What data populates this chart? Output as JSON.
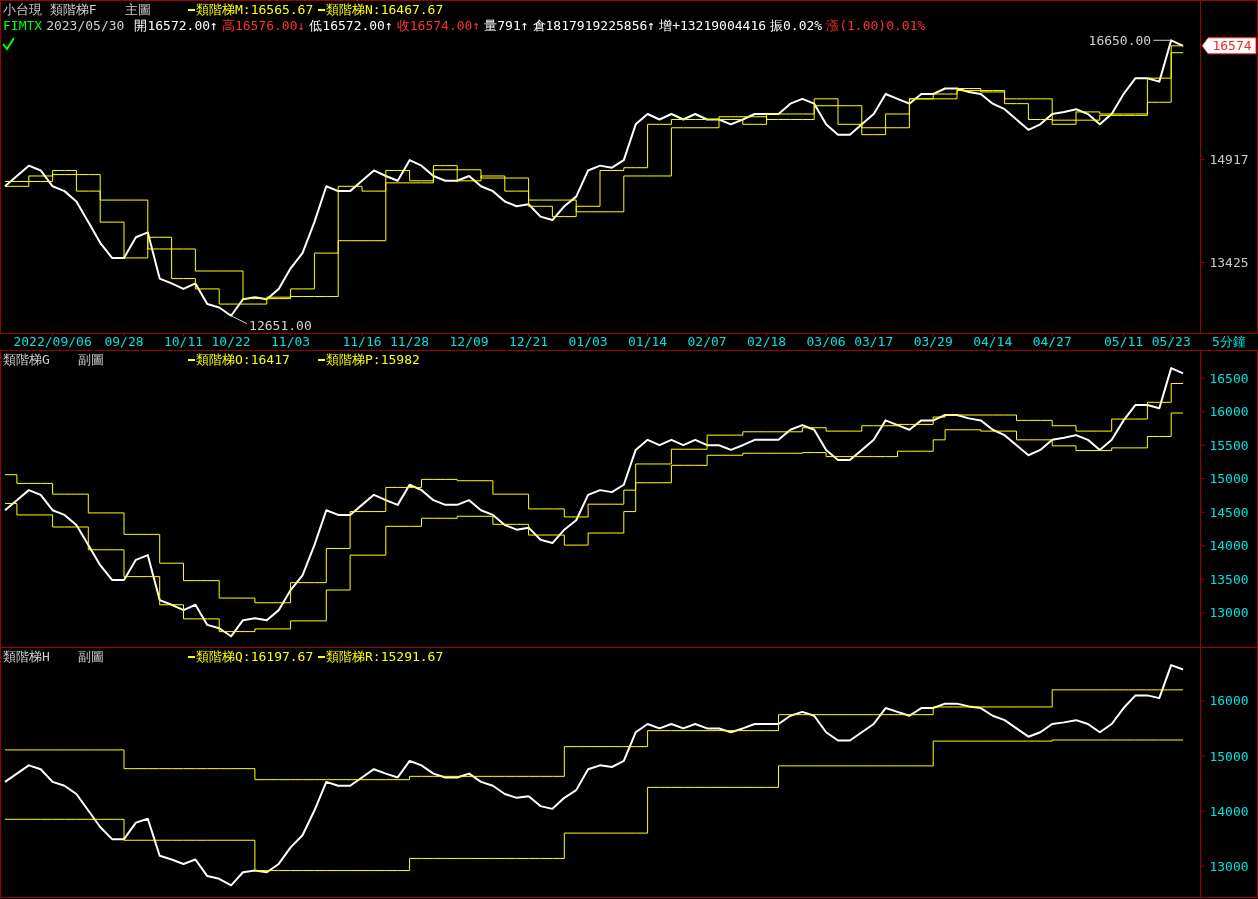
{
  "chart_data": [
    {
      "type": "line",
      "title": "小台現 類階梯F",
      "subtitle": "主圖",
      "xlabel": "5分鐘",
      "legend": "top left",
      "annotations": [
        "FIMTX",
        "2023/05/30",
        "開16572.00↑",
        "高16576.00↓",
        "低16572.00↑",
        "收16574.00↑",
        "量791↑",
        "倉1817919225856↑",
        "增+13219004416",
        "振0.02%",
        "漲(1.00)0.01%",
        "16650.00",
        "16574",
        {
          "text": "12651.00",
          "x": "10/22",
          "y": 12651
        }
      ],
      "categories": [
        null,
        null,
        null,
        null,
        "2022/09/06",
        null,
        null,
        null,
        null,
        null,
        "09/28",
        null,
        null,
        null,
        null,
        "10/11",
        null,
        null,
        null,
        "10/22",
        null,
        null,
        null,
        null,
        "11/03",
        null,
        null,
        null,
        null,
        null,
        "11/16",
        null,
        null,
        null,
        "11/28",
        null,
        null,
        null,
        null,
        "12/09",
        null,
        null,
        null,
        null,
        "12/21",
        null,
        null,
        null,
        null,
        "01/03",
        null,
        null,
        null,
        null,
        "01/14",
        null,
        null,
        null,
        null,
        "02/07",
        null,
        null,
        null,
        null,
        "02/18",
        null,
        null,
        null,
        null,
        "03/06",
        null,
        null,
        null,
        "03/17",
        null,
        null,
        null,
        null,
        "03/29",
        null,
        null,
        null,
        null,
        "04/14",
        null,
        null,
        null,
        null,
        "04/27",
        null,
        null,
        null,
        null,
        null,
        "05/11",
        null,
        null,
        null,
        "05/23",
        null
      ],
      "ylim": [
        12400,
        17235
      ],
      "yticks": [
        13425,
        14917
      ],
      "series": [
        {
          "type": "line",
          "color": "#ffffff",
          "values": [
            14530,
            14680,
            14830,
            14760,
            14530,
            14460,
            14310,
            14010,
            13710,
            13490,
            13490,
            13790,
            13860,
            13190,
            13120,
            13040,
            13120,
            12820,
            12770,
            12650,
            12890,
            12920,
            12890,
            13040,
            13340,
            13560,
            14010,
            14530,
            14460,
            14460,
            14610,
            14760,
            14680,
            14610,
            14910,
            14830,
            14680,
            14610,
            14610,
            14680,
            14530,
            14460,
            14310,
            14240,
            14270,
            14090,
            14040,
            14240,
            14380,
            14760,
            14830,
            14800,
            14910,
            15430,
            15580,
            15500,
            15580,
            15500,
            15580,
            15500,
            15500,
            15430,
            15500,
            15580,
            15580,
            15580,
            15730,
            15800,
            15730,
            15430,
            15280,
            15280,
            15430,
            15580,
            15870,
            15800,
            15730,
            15870,
            15870,
            15950,
            15950,
            15900,
            15870,
            15730,
            15650,
            15500,
            15350,
            15430,
            15580,
            15610,
            15650,
            15580,
            15430,
            15580,
            15870,
            16100,
            16100,
            16050,
            16650,
            16570
          ]
        },
        {
          "type": "step",
          "name": "類階梯M:16565.67",
          "color": "#ffff00",
          "values": [
            14530,
            14530,
            14680,
            14680,
            14760,
            14760,
            14460,
            14460,
            14010,
            14010,
            13490,
            13490,
            13790,
            13790,
            13190,
            13190,
            13040,
            13040,
            12820,
            12820,
            12820,
            12820,
            12920,
            12920,
            13040,
            13040,
            13560,
            13560,
            14530,
            14530,
            14460,
            14460,
            14760,
            14760,
            14610,
            14610,
            14830,
            14830,
            14610,
            14610,
            14680,
            14680,
            14460,
            14460,
            14240,
            14240,
            14090,
            14090,
            14240,
            14240,
            14760,
            14760,
            14800,
            14800,
            15430,
            15430,
            15500,
            15500,
            15500,
            15500,
            15500,
            15500,
            15430,
            15430,
            15580,
            15580,
            15580,
            15580,
            15800,
            15800,
            15430,
            15430,
            15280,
            15280,
            15580,
            15580,
            15800,
            15800,
            15870,
            15870,
            15950,
            15950,
            15900,
            15900,
            15730,
            15730,
            15500,
            15500,
            15430,
            15430,
            15610,
            15610,
            15580,
            15580,
            15580,
            15580,
            16100,
            16100,
            16570,
            16570
          ]
        },
        {
          "type": "step",
          "name": "類階梯N:16467.67",
          "color": "#ffff00",
          "values": [
            14600,
            14600,
            14600,
            14600,
            14700,
            14700,
            14700,
            14700,
            14330,
            14330,
            14330,
            14330,
            13620,
            13620,
            13620,
            13620,
            13300,
            13300,
            13300,
            13300,
            12900,
            12900,
            12900,
            12900,
            12930,
            12930,
            12930,
            12930,
            13740,
            13740,
            13740,
            13740,
            14580,
            14580,
            14580,
            14580,
            14770,
            14770,
            14770,
            14770,
            14650,
            14650,
            14650,
            14650,
            14330,
            14330,
            14330,
            14330,
            14160,
            14160,
            14160,
            14160,
            14680,
            14680,
            14680,
            14680,
            15380,
            15380,
            15380,
            15380,
            15540,
            15540,
            15540,
            15540,
            15500,
            15500,
            15500,
            15500,
            15700,
            15700,
            15700,
            15700,
            15380,
            15380,
            15380,
            15380,
            15800,
            15800,
            15800,
            15800,
            15920,
            15920,
            15920,
            15920,
            15800,
            15800,
            15800,
            15800,
            15490,
            15490,
            15490,
            15490,
            15560,
            15560,
            15560,
            15560,
            15750,
            15750,
            16470,
            16470
          ]
        }
      ]
    },
    {
      "type": "line",
      "title": "類階梯G",
      "subtitle": "副圖",
      "legend": "top left",
      "tick_labels": "y",
      "categories": [
        null,
        null,
        null,
        null,
        null,
        null,
        null,
        null,
        null,
        null,
        null,
        null,
        null,
        null,
        null,
        null,
        null,
        null,
        null,
        null,
        null,
        null,
        null,
        null,
        null,
        null,
        null,
        null,
        null,
        null,
        null,
        null,
        null,
        null,
        null,
        null,
        null,
        null,
        null,
        null,
        null,
        null,
        null,
        null,
        null,
        null,
        null,
        null,
        null,
        null,
        null,
        null,
        null,
        null,
        null,
        null,
        null,
        null,
        null,
        null,
        null,
        null,
        null,
        null,
        null,
        null,
        null,
        null,
        null,
        null,
        null,
        null,
        null,
        null,
        null,
        null,
        null,
        null,
        null,
        null,
        null,
        null,
        null,
        null,
        null,
        null,
        null,
        null,
        null,
        null,
        null,
        null,
        null,
        null,
        null,
        null,
        null,
        null,
        null,
        null
      ],
      "ylim": [
        12520,
        16890
      ],
      "yticks": [
        13000,
        13500,
        14000,
        14500,
        15000,
        15500,
        16000,
        16500
      ],
      "series": [
        {
          "type": "line",
          "color": "#ffffff",
          "values": [
            14530,
            14680,
            14830,
            14760,
            14530,
            14460,
            14310,
            14010,
            13710,
            13490,
            13490,
            13790,
            13860,
            13190,
            13120,
            13040,
            13120,
            12820,
            12770,
            12650,
            12890,
            12920,
            12890,
            13040,
            13340,
            13560,
            14010,
            14530,
            14460,
            14460,
            14610,
            14760,
            14680,
            14610,
            14910,
            14830,
            14680,
            14610,
            14610,
            14680,
            14530,
            14460,
            14310,
            14240,
            14270,
            14090,
            14040,
            14240,
            14380,
            14760,
            14830,
            14800,
            14910,
            15430,
            15580,
            15500,
            15580,
            15500,
            15580,
            15500,
            15500,
            15430,
            15500,
            15580,
            15580,
            15580,
            15730,
            15800,
            15730,
            15430,
            15280,
            15280,
            15430,
            15580,
            15870,
            15800,
            15730,
            15870,
            15870,
            15950,
            15950,
            15900,
            15870,
            15730,
            15650,
            15500,
            15350,
            15430,
            15580,
            15610,
            15650,
            15580,
            15430,
            15580,
            15870,
            16100,
            16100,
            16050,
            16650,
            16570
          ]
        },
        {
          "type": "step",
          "name": "類階梯O:16417",
          "color": "#ffff00",
          "values": [
            15060,
            14930,
            14930,
            14930,
            14770,
            14770,
            14770,
            14490,
            14490,
            14490,
            14170,
            14170,
            14170,
            13740,
            13740,
            13480,
            13480,
            13480,
            13220,
            13220,
            13220,
            13150,
            13150,
            13150,
            13450,
            13450,
            13450,
            13960,
            13960,
            14510,
            14510,
            14510,
            14870,
            14870,
            14870,
            14990,
            14990,
            14990,
            14970,
            14970,
            14970,
            14770,
            14770,
            14770,
            14550,
            14550,
            14550,
            14430,
            14430,
            14620,
            14620,
            14620,
            14830,
            15220,
            15220,
            15220,
            15440,
            15440,
            15440,
            15650,
            15650,
            15650,
            15700,
            15700,
            15700,
            15700,
            15700,
            15760,
            15760,
            15710,
            15710,
            15710,
            15790,
            15790,
            15790,
            15810,
            15810,
            15810,
            15920,
            15950,
            15950,
            15950,
            15950,
            15950,
            15950,
            15870,
            15870,
            15870,
            15790,
            15790,
            15710,
            15710,
            15710,
            15890,
            15890,
            15890,
            16140,
            16140,
            16420,
            16420
          ]
        },
        {
          "type": "step",
          "name": "類階梯P:15982",
          "color": "#ffff00",
          "values": [
            14630,
            14460,
            14460,
            14460,
            14280,
            14280,
            14280,
            13940,
            13940,
            13940,
            13540,
            13540,
            13540,
            13120,
            13120,
            12910,
            12910,
            12910,
            12720,
            12720,
            12720,
            12760,
            12760,
            12760,
            12880,
            12880,
            12880,
            13340,
            13340,
            13860,
            13860,
            13860,
            14290,
            14290,
            14290,
            14410,
            14410,
            14410,
            14440,
            14440,
            14440,
            14320,
            14320,
            14320,
            14160,
            14160,
            14160,
            14010,
            14010,
            14190,
            14190,
            14190,
            14510,
            14940,
            14940,
            14940,
            15200,
            15200,
            15200,
            15350,
            15350,
            15350,
            15380,
            15380,
            15380,
            15380,
            15380,
            15390,
            15390,
            15330,
            15330,
            15330,
            15330,
            15330,
            15330,
            15410,
            15410,
            15410,
            15580,
            15730,
            15730,
            15730,
            15710,
            15710,
            15710,
            15580,
            15580,
            15580,
            15490,
            15490,
            15420,
            15420,
            15420,
            15460,
            15460,
            15460,
            15630,
            15630,
            15980,
            15980
          ]
        }
      ]
    },
    {
      "type": "line",
      "title": "類階梯H",
      "subtitle": "副圖",
      "legend": "top left",
      "tick_labels": "y",
      "categories": [
        null,
        null,
        null,
        null,
        null,
        null,
        null,
        null,
        null,
        null,
        null,
        null,
        null,
        null,
        null,
        null,
        null,
        null,
        null,
        null,
        null,
        null,
        null,
        null,
        null,
        null,
        null,
        null,
        null,
        null,
        null,
        null,
        null,
        null,
        null,
        null,
        null,
        null,
        null,
        null,
        null,
        null,
        null,
        null,
        null,
        null,
        null,
        null,
        null,
        null,
        null,
        null,
        null,
        null,
        null,
        null,
        null,
        null,
        null,
        null,
        null,
        null,
        null,
        null,
        null,
        null,
        null,
        null,
        null,
        null,
        null,
        null,
        null,
        null,
        null,
        null,
        null,
        null,
        null,
        null,
        null,
        null,
        null,
        null,
        null,
        null,
        null,
        null,
        null,
        null,
        null,
        null,
        null,
        null,
        null,
        null,
        null,
        null,
        null,
        null
      ],
      "ylim": [
        12440,
        16960
      ],
      "yticks": [
        13000,
        14000,
        15000,
        16000
      ],
      "series": [
        {
          "type": "line",
          "color": "#ffffff",
          "values": [
            14530,
            14680,
            14830,
            14760,
            14530,
            14460,
            14310,
            14010,
            13710,
            13490,
            13490,
            13790,
            13860,
            13190,
            13120,
            13040,
            13120,
            12820,
            12770,
            12650,
            12890,
            12920,
            12890,
            13040,
            13340,
            13560,
            14010,
            14530,
            14460,
            14460,
            14610,
            14760,
            14680,
            14610,
            14910,
            14830,
            14680,
            14610,
            14610,
            14680,
            14530,
            14460,
            14310,
            14240,
            14270,
            14090,
            14040,
            14240,
            14380,
            14760,
            14830,
            14800,
            14910,
            15430,
            15580,
            15500,
            15580,
            15500,
            15580,
            15500,
            15500,
            15430,
            15500,
            15580,
            15580,
            15580,
            15730,
            15800,
            15730,
            15430,
            15280,
            15280,
            15430,
            15580,
            15870,
            15800,
            15730,
            15870,
            15870,
            15950,
            15950,
            15900,
            15870,
            15730,
            15650,
            15500,
            15350,
            15430,
            15580,
            15610,
            15650,
            15580,
            15430,
            15580,
            15870,
            16100,
            16100,
            16050,
            16650,
            16570
          ]
        },
        {
          "type": "step",
          "name": "類階梯Q:16197.67",
          "color": "#ffff00",
          "values": [
            15110,
            15110,
            15110,
            15110,
            15110,
            15110,
            15110,
            15110,
            15110,
            15110,
            14770,
            14770,
            14770,
            14770,
            14770,
            14770,
            14770,
            14770,
            14770,
            14770,
            14770,
            14570,
            14570,
            14570,
            14570,
            14570,
            14570,
            14570,
            14570,
            14570,
            14570,
            14570,
            14570,
            14570,
            14630,
            14630,
            14630,
            14630,
            14630,
            14630,
            14630,
            14630,
            14630,
            14630,
            14630,
            14630,
            14630,
            15170,
            15170,
            15170,
            15170,
            15170,
            15170,
            15170,
            15460,
            15460,
            15460,
            15460,
            15460,
            15460,
            15460,
            15460,
            15460,
            15460,
            15460,
            15750,
            15750,
            15750,
            15750,
            15750,
            15750,
            15750,
            15750,
            15750,
            15750,
            15750,
            15750,
            15750,
            15890,
            15890,
            15890,
            15890,
            15890,
            15890,
            15890,
            15890,
            15890,
            15890,
            16200,
            16200,
            16200,
            16200,
            16200,
            16200,
            16200,
            16200,
            16200,
            16200,
            16200,
            16200
          ]
        },
        {
          "type": "step",
          "name": "類階梯R:15291.67",
          "color": "#ffff00",
          "values": [
            13850,
            13850,
            13850,
            13850,
            13850,
            13850,
            13850,
            13850,
            13850,
            13850,
            13470,
            13470,
            13470,
            13470,
            13470,
            13470,
            13470,
            13470,
            13470,
            13470,
            13470,
            12920,
            12920,
            12920,
            12920,
            12920,
            12920,
            12920,
            12920,
            12920,
            12920,
            12920,
            12920,
            12920,
            13140,
            13140,
            13140,
            13140,
            13140,
            13140,
            13140,
            13140,
            13140,
            13140,
            13140,
            13140,
            13140,
            13600,
            13600,
            13600,
            13600,
            13600,
            13600,
            13600,
            14430,
            14430,
            14430,
            14430,
            14430,
            14430,
            14430,
            14430,
            14430,
            14430,
            14430,
            14820,
            14820,
            14820,
            14820,
            14820,
            14820,
            14820,
            14820,
            14820,
            14820,
            14820,
            14820,
            14820,
            15270,
            15270,
            15270,
            15270,
            15270,
            15270,
            15270,
            15270,
            15270,
            15270,
            15290,
            15290,
            15290,
            15290,
            15290,
            15290,
            15290,
            15290,
            15290,
            15290,
            15290,
            15290
          ]
        }
      ]
    }
  ]
}
